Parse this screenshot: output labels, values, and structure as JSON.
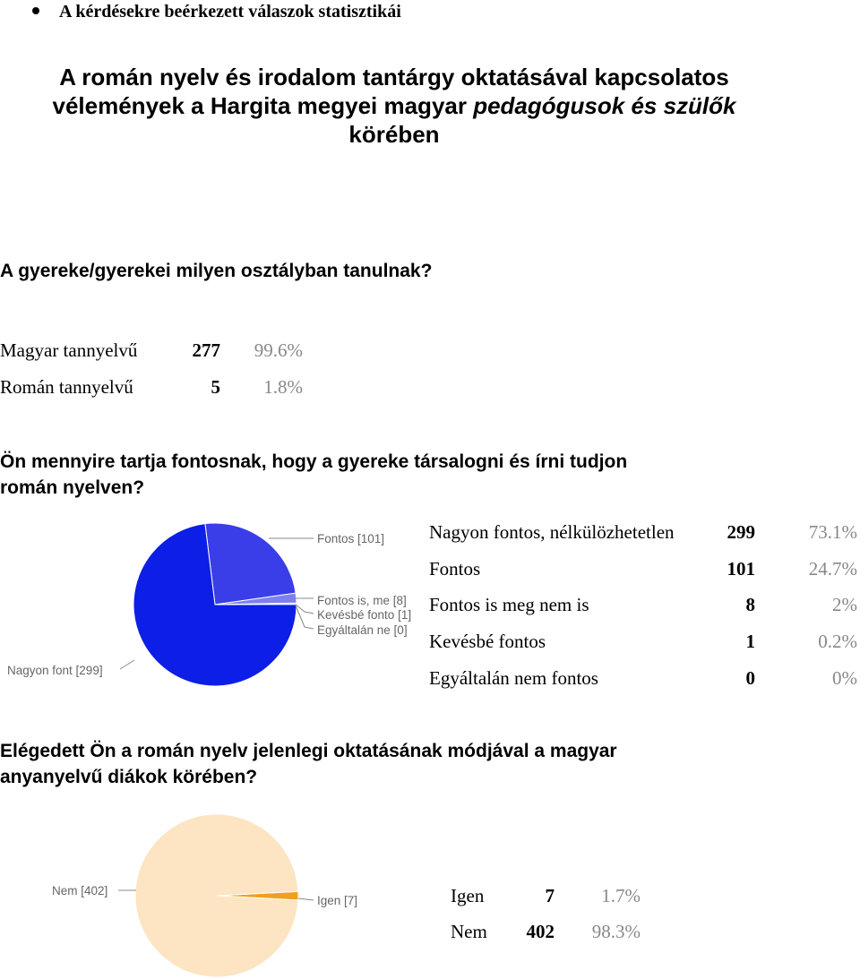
{
  "bullet": {
    "text": "A kérdésekre beérkezett válaszok statisztikái"
  },
  "title": {
    "line1": "A román nyelv és irodalom tantárgy oktatásával kapcsolatos",
    "line2_part1": "vélemények a Hargita megyei magyar ",
    "line2_italic": "pedagógusok és szülők",
    "line3": "körében"
  },
  "q1": {
    "question": "A gyereke/gyerekei milyen osztályban tanulnak?",
    "rows": [
      {
        "label": "Magyar tannyelvű",
        "count": "277",
        "pct": "99.6%"
      },
      {
        "label": "Román tannyelvű",
        "count": "5",
        "pct": "1.8%"
      }
    ]
  },
  "q2": {
    "question_line1": "Ön mennyire tartja fontosnak, hogy a gyereke társalogni és írni tudjon",
    "question_line2": "román nyelven?",
    "rows": [
      {
        "label": "Nagyon fontos, nélkülözhetetlen",
        "count": "299",
        "pct": "73.1%"
      },
      {
        "label": "Fontos",
        "count": "101",
        "pct": "24.7%"
      },
      {
        "label": "Fontos is meg nem is",
        "count": "8",
        "pct": "2%"
      },
      {
        "label": "Kevésbé fontos",
        "count": "1",
        "pct": "0.2%"
      },
      {
        "label": "Egyáltalán nem fontos",
        "count": "0",
        "pct": "0%"
      }
    ]
  },
  "q3": {
    "question_line1": "Elégedett Ön a román nyelv jelenlegi oktatásának módjával a magyar",
    "question_line2": "anyanyelvű diákok körében?",
    "rows": [
      {
        "label": "Igen",
        "count": "7",
        "pct": "1.7%"
      },
      {
        "label": "Nem",
        "count": "402",
        "pct": "98.3%"
      }
    ]
  },
  "chart_data": [
    {
      "type": "pie",
      "labels": [
        "Nagyon font [299]",
        "Fontos [101]",
        "Fontos is, me [8]",
        "Kevésbé fonto [1]",
        "Egyáltalán ne [0]"
      ],
      "categories": [
        "Nagyon fontos, nélkülözhetetlen",
        "Fontos",
        "Fontos is meg nem is",
        "Kevésbé fontos",
        "Egyáltalán nem fontos"
      ],
      "values": [
        299,
        101,
        8,
        1,
        0
      ],
      "colors": [
        "#0d1ee6",
        "#3a3ee8",
        "#7d80ee",
        "#9d9ff2",
        "#c5c6f7"
      ]
    },
    {
      "type": "pie",
      "labels": [
        "Igen [7]",
        "Nem [402]"
      ],
      "categories": [
        "Igen",
        "Nem"
      ],
      "values": [
        7,
        402
      ],
      "colors": [
        "#f0a020",
        "#fde4c2"
      ]
    }
  ]
}
